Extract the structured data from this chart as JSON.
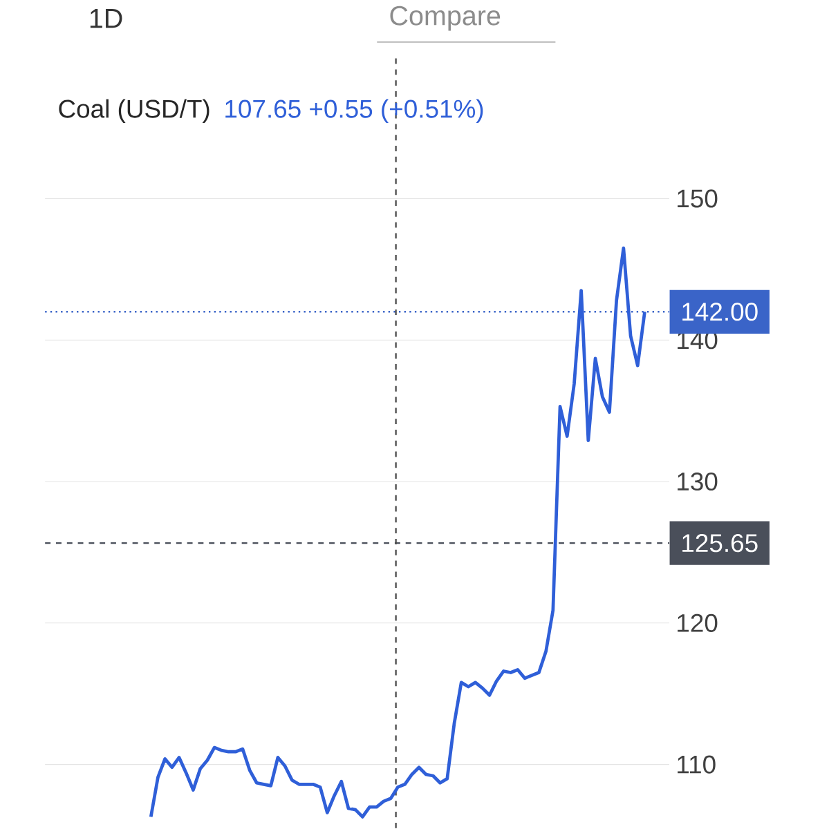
{
  "chart_data": {
    "type": "line",
    "title": "Coal (USD/T)",
    "categories": [
      null,
      null,
      null,
      null,
      null,
      null,
      null,
      null,
      null,
      null,
      null,
      null,
      null,
      null,
      null,
      null,
      null,
      null,
      null,
      null,
      null,
      null,
      null,
      null,
      null,
      null,
      null,
      null,
      null,
      null,
      null,
      null,
      null,
      null,
      null,
      null,
      null,
      null,
      null,
      null,
      null,
      null,
      null,
      null,
      null,
      null,
      null,
      null,
      null,
      null,
      null,
      null,
      null,
      null,
      null,
      null,
      null,
      null,
      null,
      null,
      null,
      null,
      null,
      null,
      null,
      null,
      null,
      null,
      null,
      null,
      null,
      null,
      null,
      null,
      null,
      null,
      null,
      null,
      null,
      null,
      null,
      null,
      null,
      null,
      null,
      null
    ],
    "series": [
      {
        "color": "#2f5fd8",
        "values": [
          null,
          null,
          null,
          null,
          null,
          null,
          null,
          null,
          null,
          null,
          null,
          null,
          null,
          null,
          null,
          106.3,
          109.1,
          110.4,
          109.8,
          110.5,
          109.4,
          108.2,
          109.7,
          110.3,
          111.2,
          111.0,
          110.9,
          110.9,
          111.1,
          109.6,
          108.7,
          108.6,
          108.5,
          110.5,
          109.9,
          108.9,
          108.6,
          108.6,
          108.6,
          108.4,
          106.6,
          107.8,
          108.8,
          106.9,
          106.8,
          106.3,
          107.0,
          107.0,
          107.4,
          107.6,
          108.4,
          108.6,
          109.3,
          109.8,
          109.3,
          109.2,
          108.7,
          109.0,
          112.9,
          115.8,
          115.5,
          115.8,
          115.4,
          114.9,
          115.9,
          116.6,
          116.5,
          116.7,
          116.1,
          116.3,
          116.5,
          118.0,
          120.9,
          135.3,
          133.2,
          136.9,
          143.5,
          132.9,
          138.7,
          136.0,
          134.9,
          142.8,
          146.5,
          140.3,
          138.2,
          142.0
        ]
      }
    ],
    "ylim": [
      105.5,
      160
    ],
    "yticks": [
      110,
      120,
      130,
      140,
      150
    ],
    "grid": "y",
    "tick_labels": "y",
    "marker": "none",
    "line_style": "solid",
    "ref_lines": [
      {
        "axis": "y",
        "value": 142.0,
        "label": "142.00",
        "color": "#3a64c8",
        "line_style": "dotted"
      },
      {
        "axis": "y",
        "value": 125.65,
        "label": "125.65",
        "color": "#4a4f5a",
        "line_style": "dashed"
      }
    ],
    "annotations": [
      "107.65  +0.55 (+0.51%)",
      "1D",
      "Compare"
    ]
  }
}
